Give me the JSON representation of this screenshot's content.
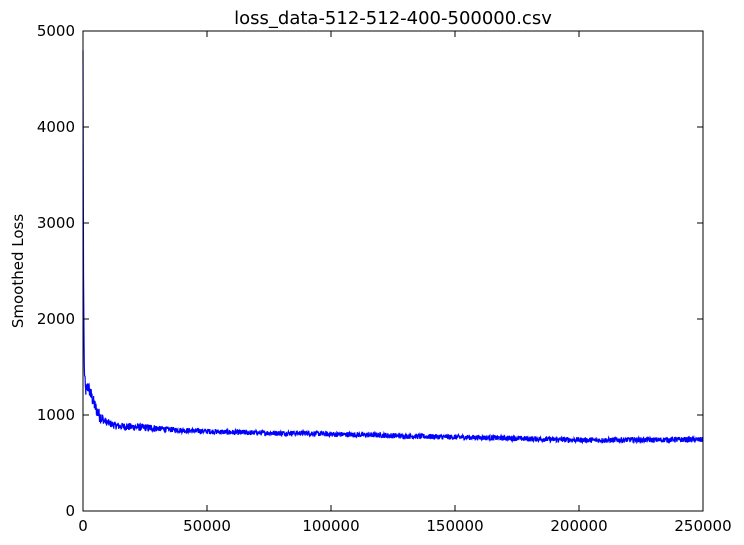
{
  "chart_data": {
    "type": "line",
    "title": "loss_data-512-512-400-500000.csv",
    "xlabel": "",
    "ylabel": "Smoothed Loss",
    "xlim": [
      0,
      250000
    ],
    "ylim": [
      0,
      5000
    ],
    "grid": false,
    "x_ticks": [
      0,
      50000,
      100000,
      150000,
      200000,
      250000
    ],
    "x_tick_labels": [
      "0",
      "50000",
      "100000",
      "150000",
      "200000",
      "250000"
    ],
    "y_ticks": [
      0,
      1000,
      2000,
      3000,
      4000,
      5000
    ],
    "y_tick_labels": [
      "0",
      "1000",
      "2000",
      "3000",
      "4000",
      "5000"
    ],
    "series": [
      {
        "color": "#0000ff",
        "noise": 28,
        "x": [
          0,
          200,
          500,
          1000,
          2000,
          3000,
          4000,
          5000,
          6500,
          8000,
          10000,
          13000,
          16000,
          20000,
          25000,
          30000,
          35000,
          40000,
          50000,
          60000,
          70000,
          80000,
          90000,
          100000,
          110000,
          120000,
          130000,
          140000,
          150000,
          160000,
          170000,
          180000,
          190000,
          200000,
          210000,
          220000,
          230000,
          240000,
          250000
        ],
        "y": [
          4800,
          2500,
          1500,
          1250,
          1300,
          1230,
          1150,
          1080,
          1000,
          950,
          920,
          890,
          880,
          875,
          870,
          860,
          850,
          840,
          830,
          820,
          815,
          810,
          812,
          800,
          795,
          790,
          780,
          775,
          770,
          765,
          760,
          752,
          745,
          740,
          738,
          742,
          740,
          745,
          742
        ]
      }
    ]
  }
}
